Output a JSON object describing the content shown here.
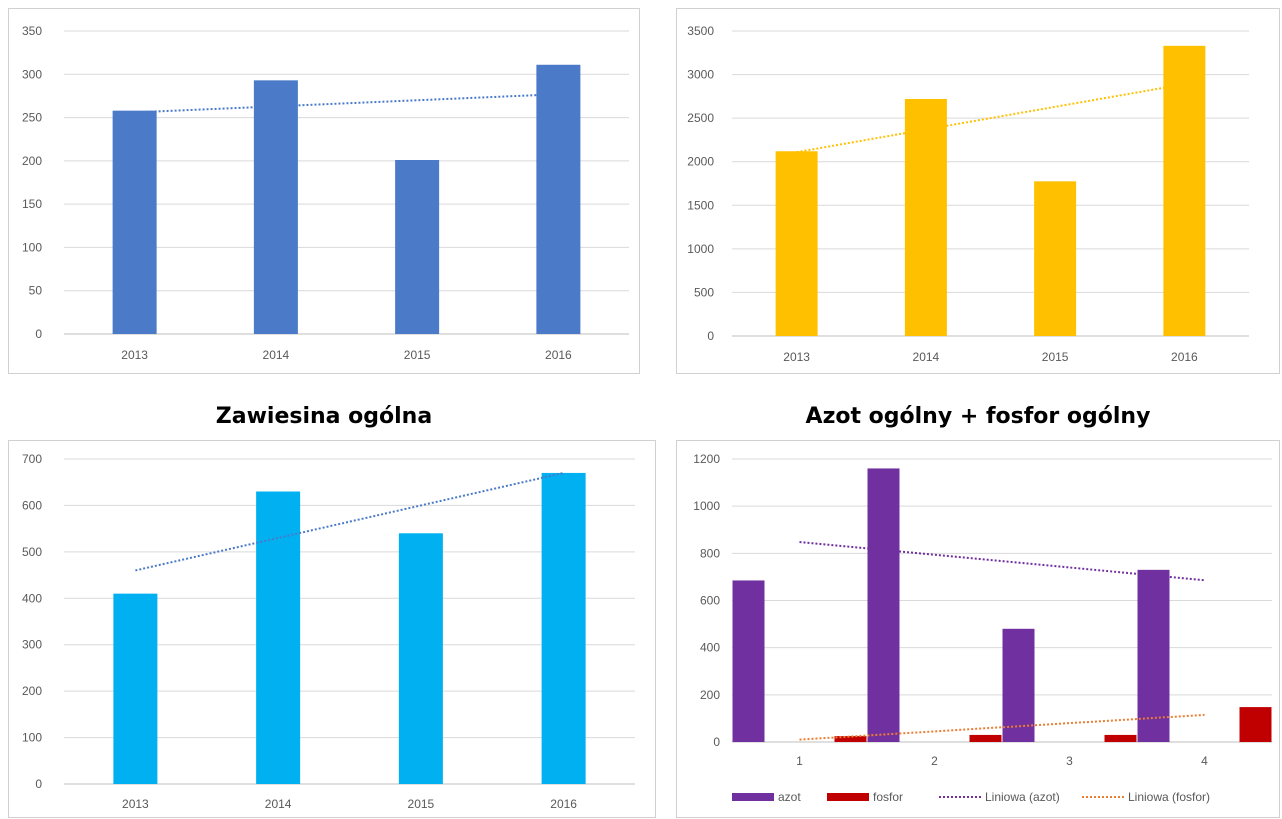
{
  "titles": {
    "chart3": "Zawiesina ogólna",
    "chart4": "Azot ogólny + fosfor ogólny"
  },
  "chart_data": [
    {
      "type": "bar",
      "categories": [
        "2013",
        "2014",
        "2015",
        "2016"
      ],
      "series": [
        {
          "values": [
            258,
            293,
            201,
            311
          ],
          "color": "#4a7ac8"
        }
      ],
      "trendlines": [
        {
          "values": [
            256,
            263,
            270,
            277
          ],
          "color": "#4a7ac8"
        }
      ],
      "yticks": [
        0,
        50,
        100,
        150,
        200,
        250,
        300,
        350
      ],
      "ylim": [
        0,
        350
      ],
      "grid": true,
      "legend": null
    },
    {
      "type": "bar",
      "categories": [
        "2013",
        "2014",
        "2015",
        "2016"
      ],
      "series": [
        {
          "values": [
            2120,
            2720,
            1775,
            3330
          ],
          "color": "#ffc000"
        }
      ],
      "trendlines": [
        {
          "values": [
            2110,
            2370,
            2630,
            2890
          ],
          "color": "#ffc000"
        }
      ],
      "yticks": [
        0,
        500,
        1000,
        1500,
        2000,
        2500,
        3000,
        3500
      ],
      "ylim": [
        0,
        3500
      ],
      "grid": true,
      "legend": null
    },
    {
      "type": "bar",
      "title": "Zawiesina ogólna",
      "categories": [
        "2013",
        "2014",
        "2015",
        "2016"
      ],
      "series": [
        {
          "values": [
            410,
            630,
            540,
            670
          ],
          "color": "#00b0f0"
        }
      ],
      "trendlines": [
        {
          "values": [
            460,
            530,
            600,
            670
          ],
          "color": "#4a7ac8"
        }
      ],
      "yticks": [
        0,
        100,
        200,
        300,
        400,
        500,
        600,
        700
      ],
      "ylim": [
        0,
        700
      ],
      "grid": true,
      "legend": null
    },
    {
      "type": "bar",
      "title": "Azot ogólny + fosfor ogólny",
      "categories": [
        "1",
        "2",
        "3",
        "4"
      ],
      "series": [
        {
          "name": "azot",
          "values": [
            685,
            1160,
            480,
            730
          ],
          "color": "#7030a0"
        },
        {
          "name": "fosfor",
          "values": [
            25,
            30,
            30,
            148
          ],
          "color": "#c00000"
        }
      ],
      "trendlines": [
        {
          "name": "Liniowa (azot)",
          "values": [
            848,
            794,
            740,
            686
          ],
          "color": "#7030a0"
        },
        {
          "name": "Liniowa (fosfor)",
          "values": [
            10,
            45,
            80,
            115
          ],
          "color": "#ed7d31"
        }
      ],
      "yticks": [
        0,
        200,
        400,
        600,
        800,
        1000,
        1200
      ],
      "ylim": [
        0,
        1200
      ],
      "grid": true,
      "legend": "bottom"
    }
  ]
}
